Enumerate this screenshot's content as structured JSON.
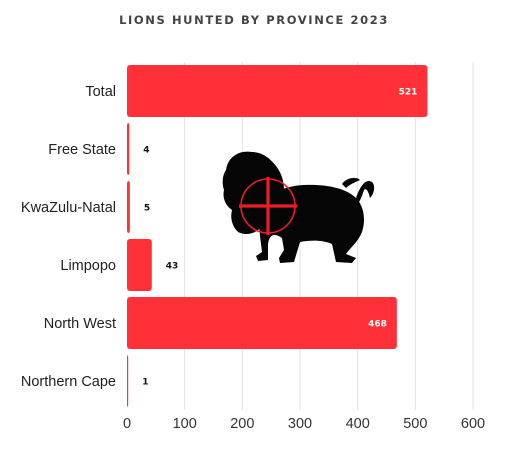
{
  "colors": {
    "bar": "#ff3038",
    "grid": "#e2e2e2",
    "silhouette": "#050505",
    "crosshair": "#ee1c24"
  },
  "decoration": {
    "icon": "lion-silhouette-with-crosshair"
  },
  "chart_data": {
    "type": "bar",
    "orientation": "horizontal",
    "title": "LIONS HUNTED BY PROVINCE 2023",
    "xlabel": "",
    "ylabel": "",
    "categories": [
      "Total",
      "Free State",
      "KwaZulu-Natal",
      "Limpopo",
      "North West",
      "Northern Cape"
    ],
    "values": [
      521,
      4,
      5,
      43,
      468,
      1
    ],
    "value_labels": [
      "521",
      "4",
      "5",
      "43",
      "468",
      "1"
    ],
    "xlim": [
      0,
      600
    ],
    "xticks": [
      0,
      100,
      200,
      300,
      400,
      500,
      600
    ],
    "xtick_labels": [
      "0",
      "100",
      "200",
      "300",
      "400",
      "500",
      "600"
    ],
    "grid": "vertical",
    "legend": "none"
  }
}
